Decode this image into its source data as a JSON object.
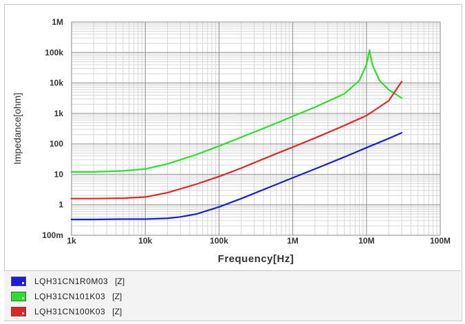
{
  "chart_data": {
    "type": "line",
    "xlabel": "Frequency[Hz]",
    "ylabel": "Impedance[ohm]",
    "x_scale": "log",
    "y_scale": "log",
    "xlim": [
      1000,
      100000000
    ],
    "ylim": [
      0.1,
      1000000
    ],
    "x_ticks": [
      {
        "value": 1000,
        "label": "1k"
      },
      {
        "value": 10000,
        "label": "10k"
      },
      {
        "value": 100000,
        "label": "100k"
      },
      {
        "value": 1000000,
        "label": "1M"
      },
      {
        "value": 10000000,
        "label": "10M"
      },
      {
        "value": 100000000,
        "label": "100M"
      }
    ],
    "y_ticks": [
      {
        "value": 0.1,
        "label": "100m"
      },
      {
        "value": 1,
        "label": "1"
      },
      {
        "value": 10,
        "label": "10"
      },
      {
        "value": 100,
        "label": "100"
      },
      {
        "value": 1000,
        "label": "1k"
      },
      {
        "value": 10000,
        "label": "10k"
      },
      {
        "value": 100000,
        "label": "100k"
      },
      {
        "value": 1000000,
        "label": "1M"
      }
    ],
    "grid": true,
    "legend_position": "bottom",
    "series": [
      {
        "name": "LQH31CN1R0M03",
        "tag": "[Z]",
        "color": "#1a1ae6",
        "x": [
          1000,
          2000,
          5000,
          10000,
          20000,
          30000,
          50000,
          100000,
          200000,
          500000,
          1000000,
          2000000,
          5000000,
          10000000,
          20000000,
          30000000
        ],
        "y": [
          0.33,
          0.33,
          0.34,
          0.34,
          0.36,
          0.4,
          0.5,
          0.85,
          1.6,
          3.9,
          7.7,
          15,
          37,
          75,
          150,
          230
        ]
      },
      {
        "name": "LQH31CN101K03",
        "tag": "[Z]",
        "color": "#22e622",
        "x": [
          1000,
          2000,
          5000,
          10000,
          20000,
          50000,
          100000,
          200000,
          500000,
          1000000,
          2000000,
          5000000,
          8000000,
          10000000,
          11000000,
          12000000,
          15000000,
          20000000,
          30000000
        ],
        "y": [
          12,
          12,
          13,
          15,
          22,
          45,
          85,
          165,
          400,
          800,
          1600,
          4400,
          12000,
          40000,
          120000,
          40000,
          12000,
          6000,
          3200
        ]
      },
      {
        "name": "LQH31CN100K03",
        "tag": "[Z]",
        "color": "#e62222",
        "x": [
          1000,
          2000,
          5000,
          10000,
          20000,
          50000,
          100000,
          200000,
          500000,
          1000000,
          2000000,
          5000000,
          10000000,
          20000000,
          30000000
        ],
        "y": [
          1.6,
          1.6,
          1.65,
          1.8,
          2.5,
          4.8,
          8.5,
          16,
          40,
          78,
          155,
          400,
          850,
          2600,
          11000
        ]
      }
    ]
  }
}
